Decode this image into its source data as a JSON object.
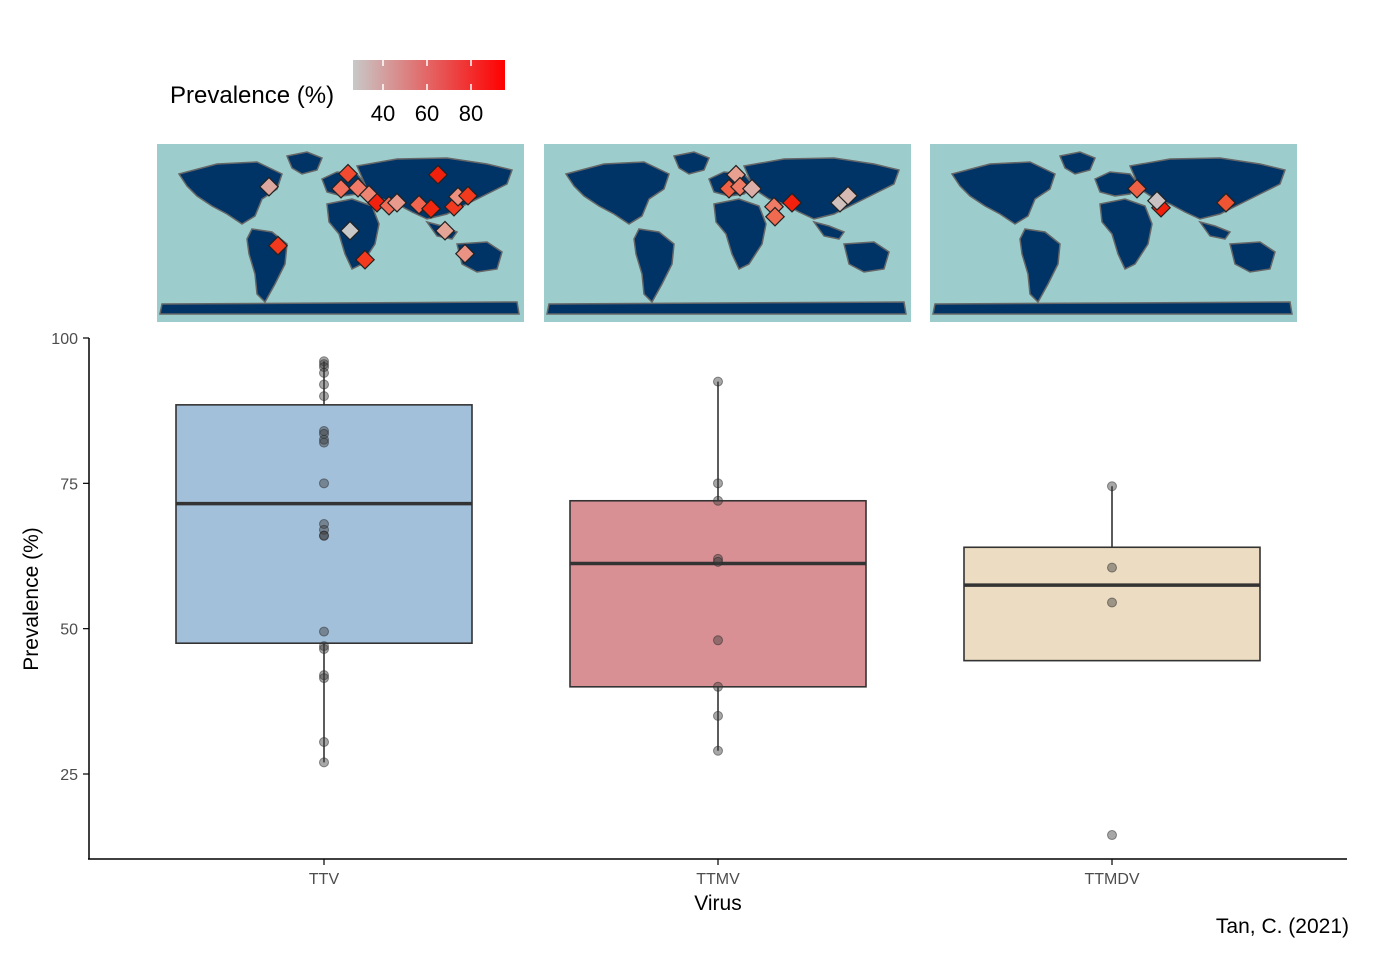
{
  "legend": {
    "title": "Prevalence (%)",
    "ticks": [
      "40",
      "60",
      "80"
    ],
    "colors": {
      "low": "#c8c8c8",
      "high": "#ff0000"
    }
  },
  "maps": {
    "ocean_color": "#9ccccc",
    "land_color": "#003366",
    "border_color": "#666666"
  },
  "credit": "Tan, C. (2021)",
  "chart_data": {
    "type": "box",
    "xlabel": "Virus",
    "ylabel": "Prevalence (%)",
    "ylim": [
      10,
      100
    ],
    "yticks": [
      25,
      50,
      75,
      100
    ],
    "categories": [
      "TTV",
      "TTMV",
      "TTMDV"
    ],
    "series": [
      {
        "category": "TTV",
        "color": "#a3c0da",
        "q1": 47.5,
        "median": 71.5,
        "q3": 88.5,
        "lower_whisker": 27,
        "upper_whisker": 96,
        "points": [
          96,
          95.5,
          95,
          94,
          92,
          90,
          84,
          83.5,
          82.5,
          82,
          75,
          68,
          67,
          66,
          66,
          49.5,
          47,
          46.5,
          42,
          41.5,
          30.5,
          27
        ]
      },
      {
        "category": "TTMV",
        "color": "#d99094",
        "q1": 40,
        "median": 61.2,
        "q3": 72,
        "lower_whisker": 29,
        "upper_whisker": 92.5,
        "points": [
          92.5,
          75,
          72,
          62,
          61.5,
          48,
          40,
          35,
          29
        ]
      },
      {
        "category": "TTMDV",
        "color": "#ecdcc2",
        "q1": 44.5,
        "median": 57.5,
        "q3": 64,
        "lower_whisker": 44.5,
        "upper_whisker": 74.5,
        "points": [
          74.5,
          60.5,
          54.5,
          14.5
        ],
        "outliers": [
          14.5
        ]
      }
    ]
  }
}
